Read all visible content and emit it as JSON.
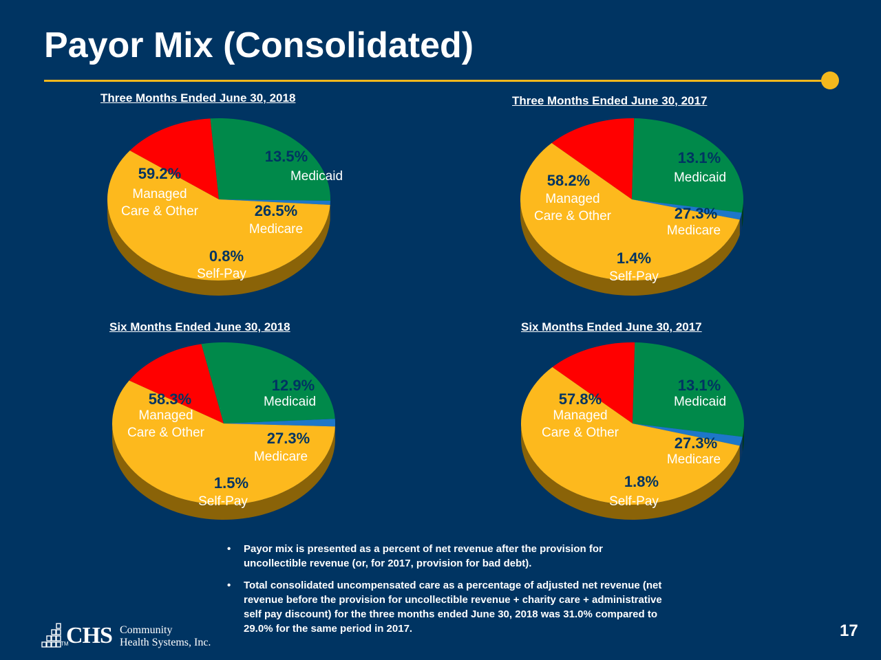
{
  "slide": {
    "title": "Payor Mix (Consolidated)",
    "page_number": "17",
    "accent_color": "#f4b81d",
    "background_color": "#003462"
  },
  "chart_data": [
    {
      "type": "pie",
      "title": "Three Months Ended June 30, 2018",
      "slices": [
        {
          "value_label": "13.5%",
          "label": "Medicaid",
          "value": 13.5,
          "color": "#ff0000"
        },
        {
          "value_label": "26.5%",
          "label": "Medicare",
          "value": 26.5,
          "color": "#00894a"
        },
        {
          "value_label": "0.8%",
          "label": "Self-Pay",
          "value": 0.8,
          "color": "#1d77c9"
        },
        {
          "value_label": "59.2%",
          "label": "Managed Care & Other",
          "value": 59.2,
          "color": "#fdb91d"
        }
      ]
    },
    {
      "type": "pie",
      "title": "Three Months Ended June 30, 2017",
      "slices": [
        {
          "value_label": "13.1%",
          "label": "Medicaid",
          "value": 13.1,
          "color": "#ff0000"
        },
        {
          "value_label": "27.3%",
          "label": "Medicare",
          "value": 27.3,
          "color": "#00894a"
        },
        {
          "value_label": "1.4%",
          "label": "Self-Pay",
          "value": 1.4,
          "color": "#1d77c9"
        },
        {
          "value_label": "58.2%",
          "label": "Managed Care & Other",
          "value": 58.2,
          "color": "#fdb91d"
        }
      ]
    },
    {
      "type": "pie",
      "title": "Six Months Ended June 30, 2018",
      "slices": [
        {
          "value_label": "12.9%",
          "label": "Medicaid",
          "value": 12.9,
          "color": "#ff0000"
        },
        {
          "value_label": "27.3%",
          "label": "Medicare",
          "value": 27.3,
          "color": "#00894a"
        },
        {
          "value_label": "1.5%",
          "label": "Self-Pay",
          "value": 1.5,
          "color": "#1d77c9"
        },
        {
          "value_label": "58.3%",
          "label": "Managed Care & Other",
          "value": 58.3,
          "color": "#fdb91d"
        }
      ]
    },
    {
      "type": "pie",
      "title": "Six Months Ended June 30, 2017",
      "slices": [
        {
          "value_label": "13.1%",
          "label": "Medicaid",
          "value": 13.1,
          "color": "#ff0000"
        },
        {
          "value_label": "27.3%",
          "label": "Medicare",
          "value": 27.3,
          "color": "#00894a"
        },
        {
          "value_label": "1.8%",
          "label": "Self-Pay",
          "value": 1.8,
          "color": "#1d77c9"
        },
        {
          "value_label": "57.8%",
          "label": "Managed Care & Other",
          "value": 57.8,
          "color": "#fdb91d"
        }
      ]
    }
  ],
  "notes": [
    "Payor mix is presented as a percent of net revenue after the provision for uncollectible revenue (or, for 2017, provision for bad debt).",
    "Total consolidated uncompensated care as a percentage of adjusted net revenue (net revenue before the provision for uncollectible revenue + charity care + administrative self pay discount) for the three months ended June 30, 2018 was 31.0% compared to 29.0% for the same period in 2017."
  ],
  "logo": {
    "mark": "CHS",
    "tm": "TM",
    "name_line1": "Community",
    "name_line2": "Health Systems, Inc."
  }
}
